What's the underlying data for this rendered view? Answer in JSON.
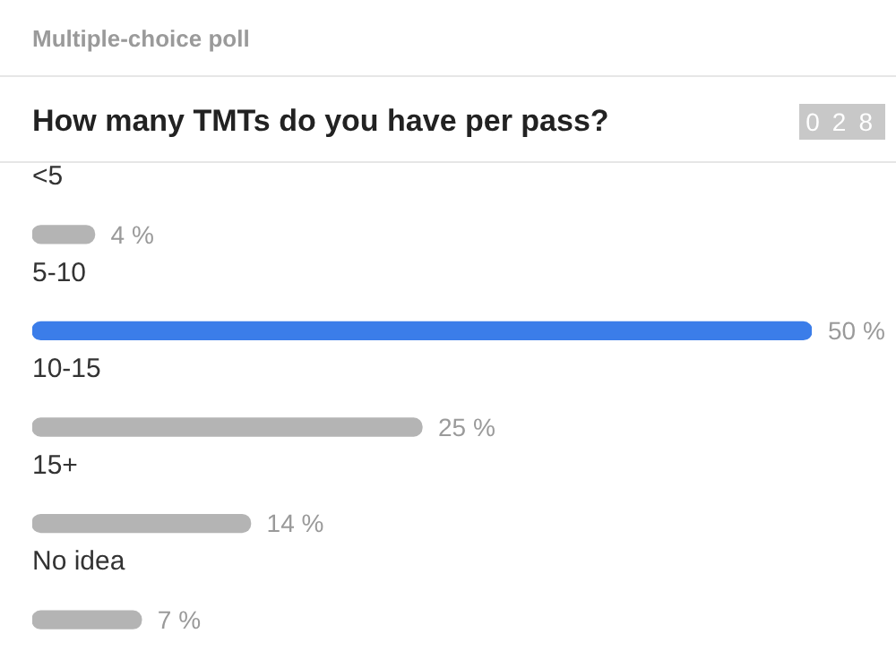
{
  "chart_data": {
    "type": "bar",
    "orientation": "horizontal",
    "title": "How many TMTs do you have per pass?",
    "annotations": [
      "Multiple-choice poll",
      "028"
    ],
    "categories": [
      "<5",
      "5-10",
      "10-15",
      "15+",
      "No idea"
    ],
    "values": [
      4,
      50,
      25,
      14,
      7
    ],
    "value_labels": [
      "4 %",
      "50 %",
      "25 %",
      "14 %",
      "7 %"
    ],
    "colors": [
      "#b4b4b4",
      "#3b7de9",
      "#b4b4b4",
      "#b4b4b4",
      "#b4b4b4"
    ],
    "xlim": [
      0,
      50
    ],
    "legend": false
  }
}
